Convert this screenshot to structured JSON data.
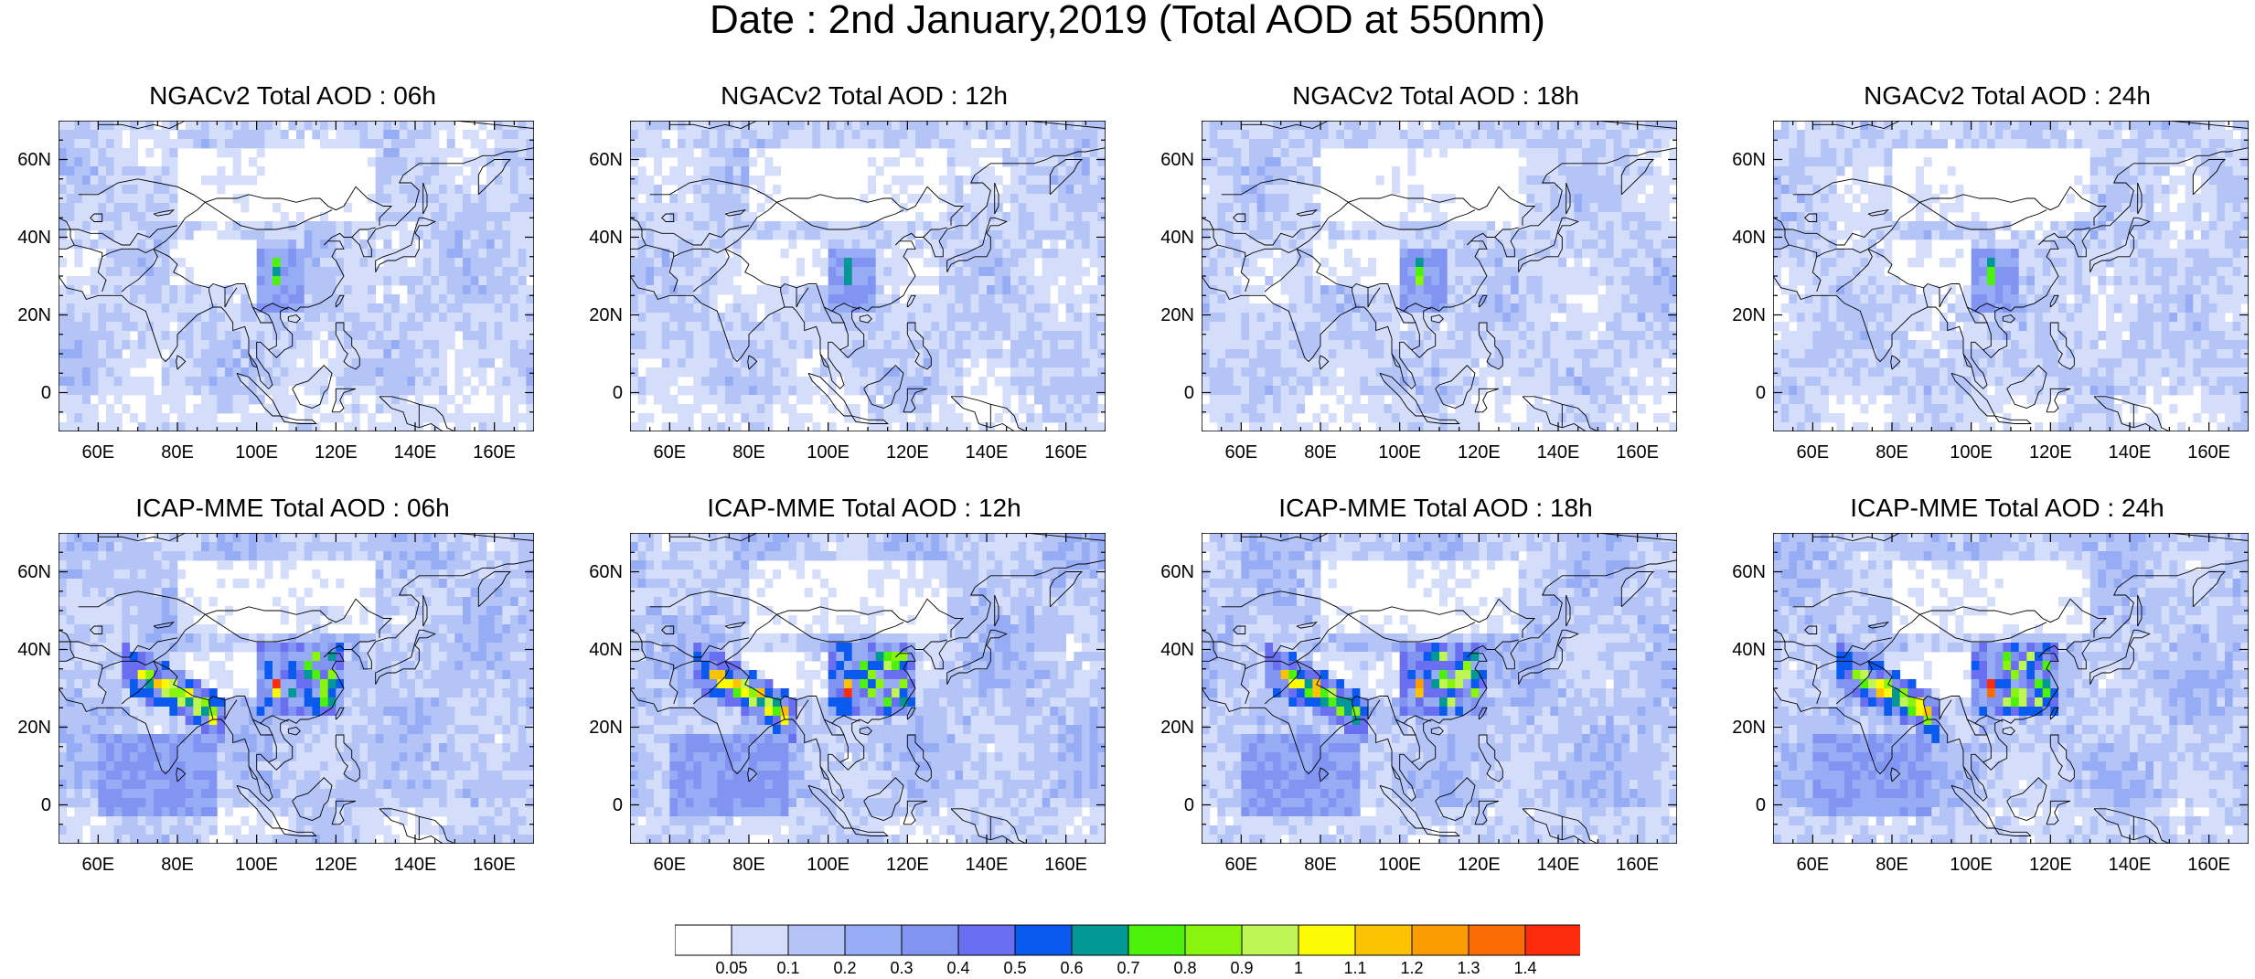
{
  "figure": {
    "title": "Date : 2nd January,2019 (Total AOD at 550nm)"
  },
  "map_axes": {
    "lon_range": [
      50,
      170
    ],
    "lat_range": [
      -10,
      70
    ],
    "lon_ticks": [
      {
        "value": 60,
        "label": "60E"
      },
      {
        "value": 80,
        "label": "80E"
      },
      {
        "value": 100,
        "label": "100E"
      },
      {
        "value": 120,
        "label": "120E"
      },
      {
        "value": 140,
        "label": "140E"
      },
      {
        "value": 160,
        "label": "160E"
      }
    ],
    "lat_ticks": [
      {
        "value": 60,
        "label": "60N"
      },
      {
        "value": 40,
        "label": "40N"
      },
      {
        "value": 20,
        "label": "20N"
      },
      {
        "value": 0,
        "label": "0"
      }
    ]
  },
  "panels": [
    {
      "title": "NGACv2 Total AOD : 06h",
      "model": "ngac"
    },
    {
      "title": "NGACv2 Total AOD : 12h",
      "model": "ngac"
    },
    {
      "title": "NGACv2 Total AOD : 18h",
      "model": "ngac"
    },
    {
      "title": "NGACv2 Total AOD : 24h",
      "model": "ngac"
    },
    {
      "title": "ICAP-MME Total AOD : 06h",
      "model": "icap"
    },
    {
      "title": "ICAP-MME Total AOD : 12h",
      "model": "icap"
    },
    {
      "title": "ICAP-MME Total AOD : 18h",
      "model": "icap"
    },
    {
      "title": "ICAP-MME Total AOD : 24h",
      "model": "icap"
    }
  ],
  "colorbar": {
    "colors": [
      "#ffffff",
      "#d4defa",
      "#b4c4f6",
      "#96acf4",
      "#8294f2",
      "#6a6ef0",
      "#0a5af0",
      "#039895",
      "#4cf20c",
      "#8af50c",
      "#bff554",
      "#fcfb04",
      "#fcc204",
      "#fc9c04",
      "#fc6c04",
      "#fc2c0c"
    ],
    "labels": [
      "0.05",
      "0.1",
      "0.2",
      "0.3",
      "0.4",
      "0.5",
      "0.6",
      "0.7",
      "0.8",
      "0.9",
      "1",
      "1.1",
      "1.2",
      "1.3",
      "1.4"
    ]
  }
}
